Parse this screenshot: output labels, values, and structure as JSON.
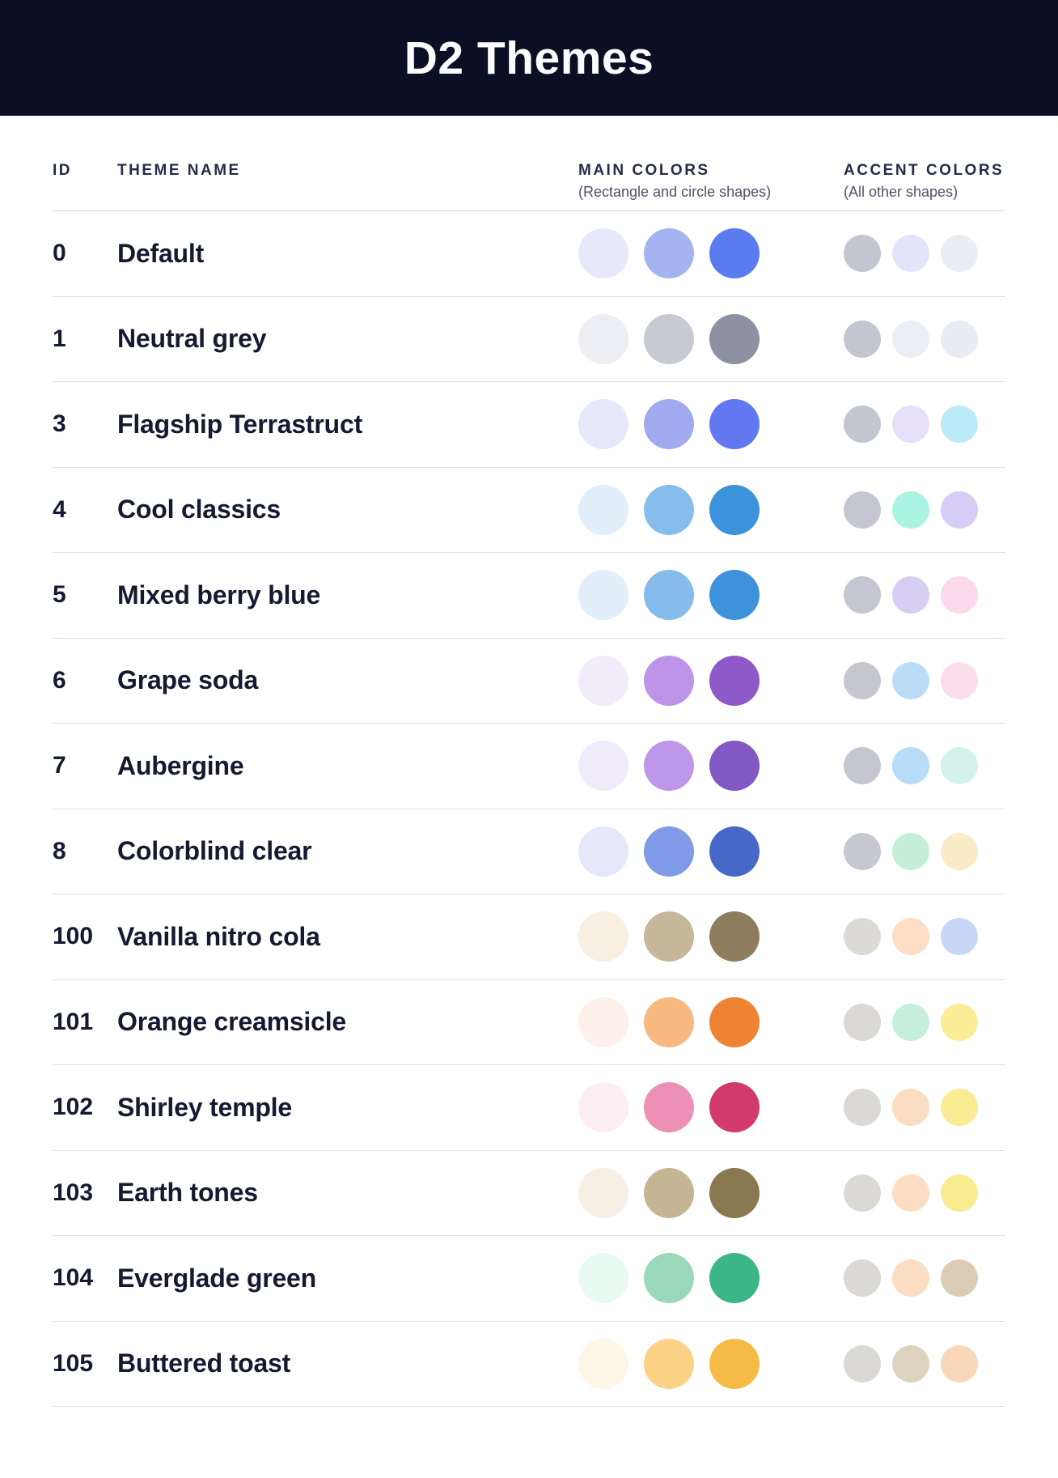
{
  "title": "D2 Themes",
  "table": {
    "columns": {
      "id": "ID",
      "name": "THEME NAME",
      "main": "MAIN COLORS",
      "main_sub": "(Rectangle and circle shapes)",
      "accent": "ACCENT COLORS",
      "accent_sub": "(All other shapes)"
    },
    "rows": [
      {
        "id": "0",
        "name": "Default",
        "main": [
          "#E7E9FB",
          "#A4B4F1",
          "#5B7CF0"
        ],
        "accent": [
          "#C3C5D1",
          "#E2E5FA",
          "#EBEDF5"
        ]
      },
      {
        "id": "1",
        "name": "Neutral grey",
        "main": [
          "#ECEEF3",
          "#C7C9D3",
          "#8D92A3"
        ],
        "accent": [
          "#C3C5D1",
          "#ECEEF6",
          "#EAECF4"
        ]
      },
      {
        "id": "3",
        "name": "Flagship Terrastruct",
        "main": [
          "#E7E9FB",
          "#A0ABEF",
          "#6278F0"
        ],
        "accent": [
          "#C3C5D1",
          "#E6DFF9",
          "#BCEAF9"
        ]
      },
      {
        "id": "4",
        "name": "Cool classics",
        "main": [
          "#E2EFFA",
          "#87BDEC",
          "#3D92DC"
        ],
        "accent": [
          "#C5C6D1",
          "#ABF3E1",
          "#D6CDF6"
        ]
      },
      {
        "id": "5",
        "name": "Mixed berry blue",
        "main": [
          "#E2EFFA",
          "#86BCEC",
          "#3E92DC"
        ],
        "accent": [
          "#C5C6D1",
          "#D7CEF4",
          "#FBD9EA"
        ]
      },
      {
        "id": "6",
        "name": "Grape soda",
        "main": [
          "#F2ECFA",
          "#BD94E8",
          "#8E59C9"
        ],
        "accent": [
          "#C5C6D0",
          "#BADCF9",
          "#FCDDEB"
        ]
      },
      {
        "id": "7",
        "name": "Aubergine",
        "main": [
          "#F0EBFA",
          "#BE97EB",
          "#8158C4"
        ],
        "accent": [
          "#C5C6D0",
          "#B6DCF9",
          "#D4F2EB"
        ]
      },
      {
        "id": "8",
        "name": "Colorblind clear",
        "main": [
          "#E4E8F9",
          "#7F9AE6",
          "#4768C7"
        ],
        "accent": [
          "#C7C8D2",
          "#C5EED6",
          "#FBECC8"
        ]
      },
      {
        "id": "100",
        "name": "Vanilla nitro cola",
        "main": [
          "#F8EFE2",
          "#C5B89A",
          "#8D7C5E"
        ],
        "accent": [
          "#DCDAD5",
          "#FBDEC5",
          "#C8D7F7"
        ]
      },
      {
        "id": "101",
        "name": "Orange creamsicle",
        "main": [
          "#FDF1E9",
          "#F8B981",
          "#EE8433"
        ],
        "accent": [
          "#DBD9D4",
          "#C5EEDD",
          "#FAED95"
        ]
      },
      {
        "id": "102",
        "name": "Shirley temple",
        "main": [
          "#FCEEF3",
          "#EC90B6",
          "#D23A6D"
        ],
        "accent": [
          "#DBD9D4",
          "#FBDDC1",
          "#FAEC92"
        ]
      },
      {
        "id": "103",
        "name": "Earth tones",
        "main": [
          "#F8EFE4",
          "#C4B593",
          "#8A7850"
        ],
        "accent": [
          "#DBD9D4",
          "#FBDDC3",
          "#F9EB90"
        ]
      },
      {
        "id": "104",
        "name": "Everglade green",
        "main": [
          "#E9FAF2",
          "#9AD8B8",
          "#3CB687"
        ],
        "accent": [
          "#DBD9D4",
          "#FBDDC3",
          "#DBCCB5"
        ]
      },
      {
        "id": "105",
        "name": "Buttered toast",
        "main": [
          "#FEF6E7",
          "#FBD185",
          "#F6BB47"
        ],
        "accent": [
          "#DBD9D4",
          "#DED3BF",
          "#FBD7B9"
        ]
      }
    ]
  },
  "colors": {
    "titlebar_bg": "#0A0F24",
    "title_text": "#FBFBFD",
    "heading_text": "#262C47",
    "subheading_text": "#4E5367",
    "row_text": "#151A31",
    "divider": "#D9DCE8"
  }
}
